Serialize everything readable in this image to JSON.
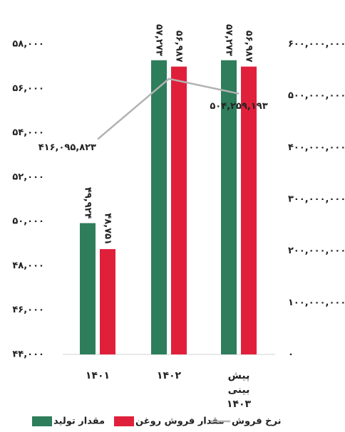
{
  "chart_data": {
    "type": "bar",
    "categories": [
      "۱۴۰۱",
      "۱۴۰۲",
      "پیش بینی ۱۴۰۳"
    ],
    "series": [
      {
        "name": "مقدار تولید",
        "color": "#2e7d5b",
        "values": [
          49924,
          57273,
          57273
        ],
        "value_labels": [
          "۴۹,۹۲۴",
          "۵۷,۲۷۳",
          "۵۷,۲۷۳"
        ]
      },
      {
        "name": "مقدار فروش روغن",
        "color": "#e0203a",
        "values": [
          48751,
          56987,
          56987
        ],
        "value_labels": [
          "۴۸,۷۵۱",
          "۵۶,۹۸۷",
          "۵۶,۹۸۷"
        ]
      },
      {
        "name": "نرخ فروش",
        "color": "#b3b3b3",
        "type": "line",
        "axis": "y2",
        "values": [
          416095823,
          533000000,
          504259193
        ],
        "value_labels": [
          "۴۱۶,۰۹۵,۸۲۳",
          null,
          "۵۰۴,۲۵۹,۱۹۳"
        ]
      }
    ],
    "ylim": [
      44000,
      58000
    ],
    "yticks": [
      {
        "value": 44000,
        "label": "۴۴,۰۰۰"
      },
      {
        "value": 46000,
        "label": "۴۶,۰۰۰"
      },
      {
        "value": 48000,
        "label": "۴۸,۰۰۰"
      },
      {
        "value": 50000,
        "label": "۵۰,۰۰۰"
      },
      {
        "value": 52000,
        "label": "۵۲,۰۰۰"
      },
      {
        "value": 54000,
        "label": "۵۴,۰۰۰"
      },
      {
        "value": 56000,
        "label": "۵۶,۰۰۰"
      },
      {
        "value": 58000,
        "label": "۵۸,۰۰۰"
      }
    ],
    "y2lim": [
      0,
      600000000
    ],
    "y2ticks": [
      {
        "value": 0,
        "label": "۰"
      },
      {
        "value": 100000000,
        "label": "۱۰۰,۰۰۰,۰۰۰"
      },
      {
        "value": 200000000,
        "label": "۲۰۰,۰۰۰,۰۰۰"
      },
      {
        "value": 300000000,
        "label": "۳۰۰,۰۰۰,۰۰۰"
      },
      {
        "value": 400000000,
        "label": "۴۰۰,۰۰۰,۰۰۰"
      },
      {
        "value": 500000000,
        "label": "۵۰۰,۰۰۰,۰۰۰"
      },
      {
        "value": 600000000,
        "label": "۶۰۰,۰۰۰,۰۰۰"
      }
    ],
    "grid": false
  }
}
